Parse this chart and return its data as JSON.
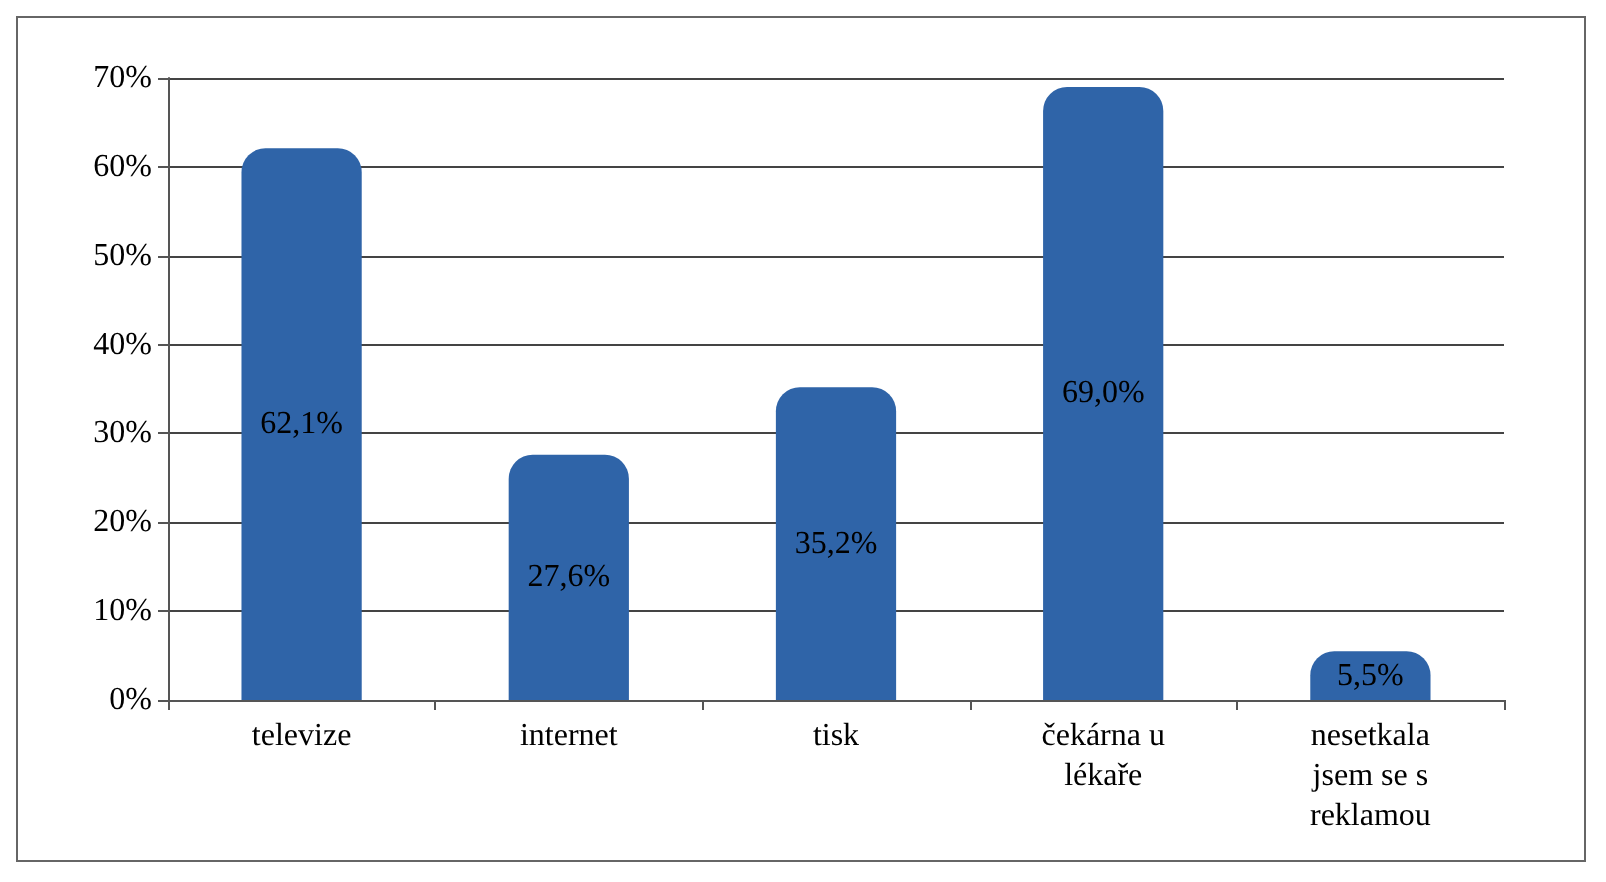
{
  "chart_data": {
    "type": "bar",
    "categories": [
      "televize",
      "internet",
      "tisk",
      "čekárna u lékaře",
      "nesetkala jsem se s reklamou"
    ],
    "values": [
      62.1,
      27.6,
      35.2,
      69.0,
      5.5
    ],
    "value_labels": [
      "62,1%",
      "27,6%",
      "35,2%",
      "69,0%",
      "5,5%"
    ],
    "color": "#2f64a8",
    "ylim": [
      0,
      70
    ],
    "yticks": [
      {
        "value": 0,
        "label": "0%"
      },
      {
        "value": 10,
        "label": "10%"
      },
      {
        "value": 20,
        "label": "20%"
      },
      {
        "value": 30,
        "label": "30%"
      },
      {
        "value": 40,
        "label": "40%"
      },
      {
        "value": 50,
        "label": "50%"
      },
      {
        "value": 60,
        "label": "60%"
      },
      {
        "value": 70,
        "label": "70%"
      }
    ],
    "grid": true
  }
}
